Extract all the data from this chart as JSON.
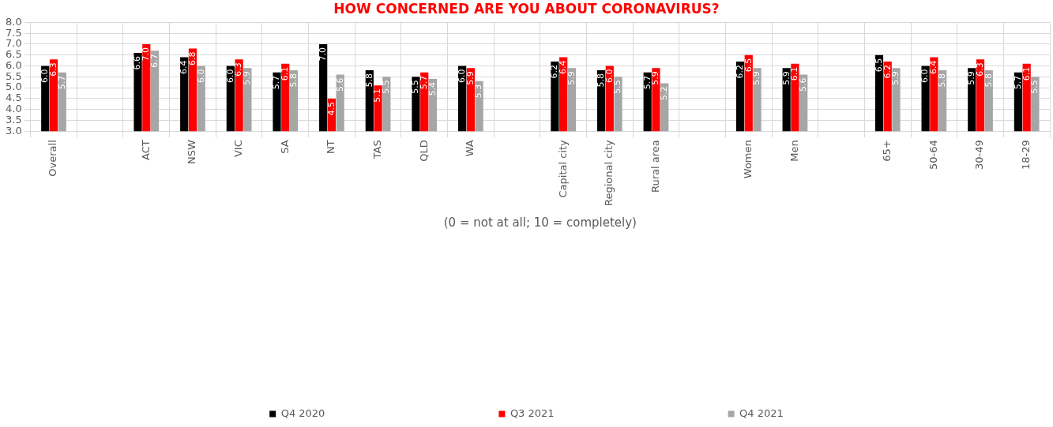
{
  "chart_data": {
    "type": "bar",
    "title": "HOW CONCERNED ARE YOU ABOUT CORONAVIRUS?",
    "xlabel": "(0 = not at all; 10 = completely)",
    "categories": [
      "Overall",
      null,
      "ACT",
      "NSW",
      "VIC",
      "SA",
      "NT",
      "TAS",
      "QLD",
      "WA",
      null,
      "Capital city",
      "Regional city",
      "Rural area",
      null,
      "Women",
      "Men",
      null,
      "65+",
      "50-64",
      "30-49",
      "18-29"
    ],
    "series": [
      {
        "name": "Q4 2020",
        "color": "#000000",
        "values": [
          6.0,
          null,
          6.6,
          6.4,
          6.0,
          5.7,
          7.0,
          5.8,
          5.5,
          6.0,
          null,
          6.2,
          5.8,
          5.7,
          null,
          6.2,
          5.9,
          null,
          6.5,
          6.0,
          5.9,
          5.7
        ],
        "value_labels": [
          "6.0",
          null,
          "6.6",
          "6.4",
          "6.0",
          "5.7",
          "7.0",
          "5.8",
          "5.5",
          "6.0",
          null,
          "6.2",
          "5.8",
          "5.7",
          null,
          "6.2",
          "5.9",
          null,
          "6.5",
          "6.0",
          "5.9",
          "5.7"
        ]
      },
      {
        "name": "Q3 2021",
        "color": "#ff0000",
        "values": [
          6.3,
          null,
          7.0,
          6.8,
          6.3,
          6.1,
          4.5,
          5.1,
          5.7,
          5.9,
          null,
          6.4,
          6.0,
          5.9,
          null,
          6.5,
          6.1,
          null,
          6.2,
          6.4,
          6.3,
          6.1
        ],
        "value_labels": [
          "6.3",
          null,
          "7.0",
          "6.8",
          "6.3",
          "6.1",
          "4.5",
          "5.1",
          "5.7",
          "5.9",
          null,
          "6.4",
          "6.0",
          "5.9",
          null,
          "6.5",
          "6.1",
          null,
          "6.2",
          "6.4",
          "6.3",
          "6.1"
        ]
      },
      {
        "name": "Q4 2021",
        "color": "#a6a6a6",
        "values": [
          5.7,
          null,
          6.7,
          6.0,
          5.9,
          5.8,
          5.6,
          5.5,
          5.4,
          5.3,
          null,
          5.9,
          5.5,
          5.2,
          null,
          5.9,
          5.6,
          null,
          5.9,
          5.8,
          5.8,
          5.5
        ],
        "value_labels": [
          "5.7",
          null,
          "6.7",
          "6.0",
          "5.9",
          "5.8",
          "5.6",
          "5.5",
          "5.4",
          "5.3",
          null,
          "5.9",
          "5.5",
          "5.2",
          null,
          "5.9",
          "5.6",
          null,
          "5.9",
          "5.8",
          "5.8",
          "5.5"
        ]
      }
    ],
    "ylim": [
      3.0,
      8.0
    ],
    "yticks": [
      {
        "value": 3,
        "label": "3.0"
      },
      {
        "value": 3.5,
        "label": "3.5"
      },
      {
        "value": 4,
        "label": "4.0"
      },
      {
        "value": 4.5,
        "label": "4.5"
      },
      {
        "value": 5,
        "label": "5.0"
      },
      {
        "value": 5.5,
        "label": "5.5"
      },
      {
        "value": 6,
        "label": "6.0"
      },
      {
        "value": 6.5,
        "label": "6.5"
      },
      {
        "value": 7,
        "label": "7.0"
      },
      {
        "value": 7.5,
        "label": "7.5"
      },
      {
        "value": 8,
        "label": "8.0"
      }
    ],
    "grid": true,
    "legend": "bottom"
  }
}
